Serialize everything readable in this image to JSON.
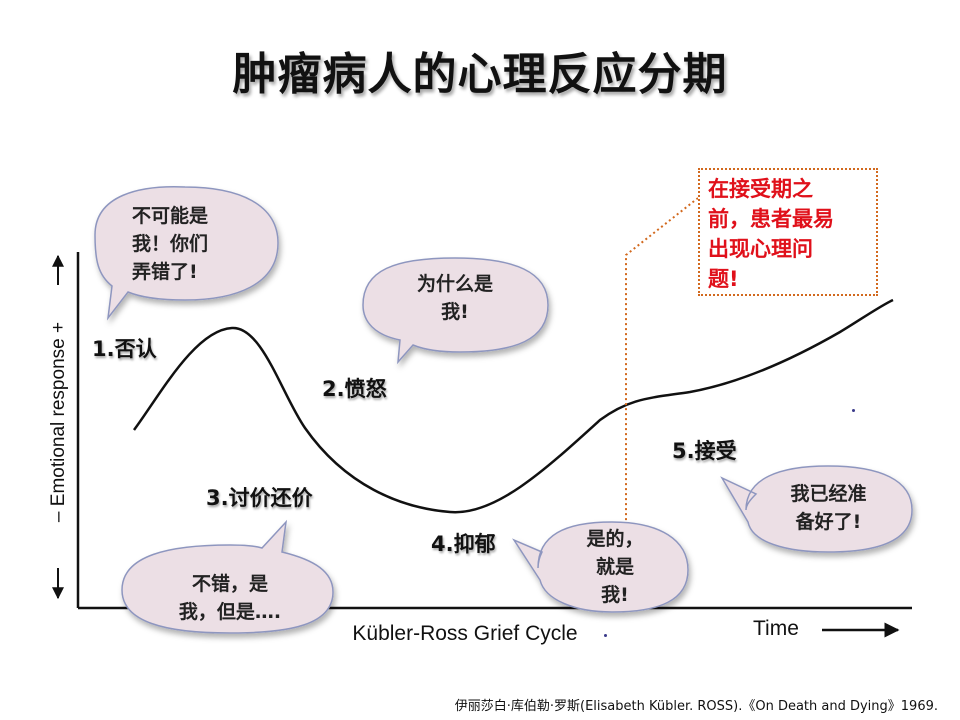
{
  "title": "肿瘤病人的心理反应分期",
  "axes": {
    "y_label": "– Emotional response +",
    "x_label": "Kübler-Ross Grief Cycle",
    "time_label": "Time"
  },
  "stages": {
    "denial": "1.否认",
    "anger": "2.愤怒",
    "bargaining": "3.讨价还价",
    "depression": "4.抑郁",
    "acceptance": "5.接受"
  },
  "bubbles": {
    "denial": "不可能是\n我！你们\n弄错了!",
    "anger": "为什么是\n我!",
    "bargaining": "不错，是\n我，但是….",
    "depression": "是的，\n就是\n我!",
    "acceptance": "我已经准\n备好了!"
  },
  "note": "在接受期之\n前，患者最易\n出现心理问\n题!",
  "citation": "伊丽莎白·库伯勒·罗斯(Elisabeth Kübler. ROSS).《On Death and Dying》1969.",
  "colors": {
    "bubble_fill": "#ecdfe5",
    "bubble_stroke": "#8e96bf",
    "note_text": "#e0101a",
    "note_border": "#d2691e",
    "curve": "#111111"
  }
}
